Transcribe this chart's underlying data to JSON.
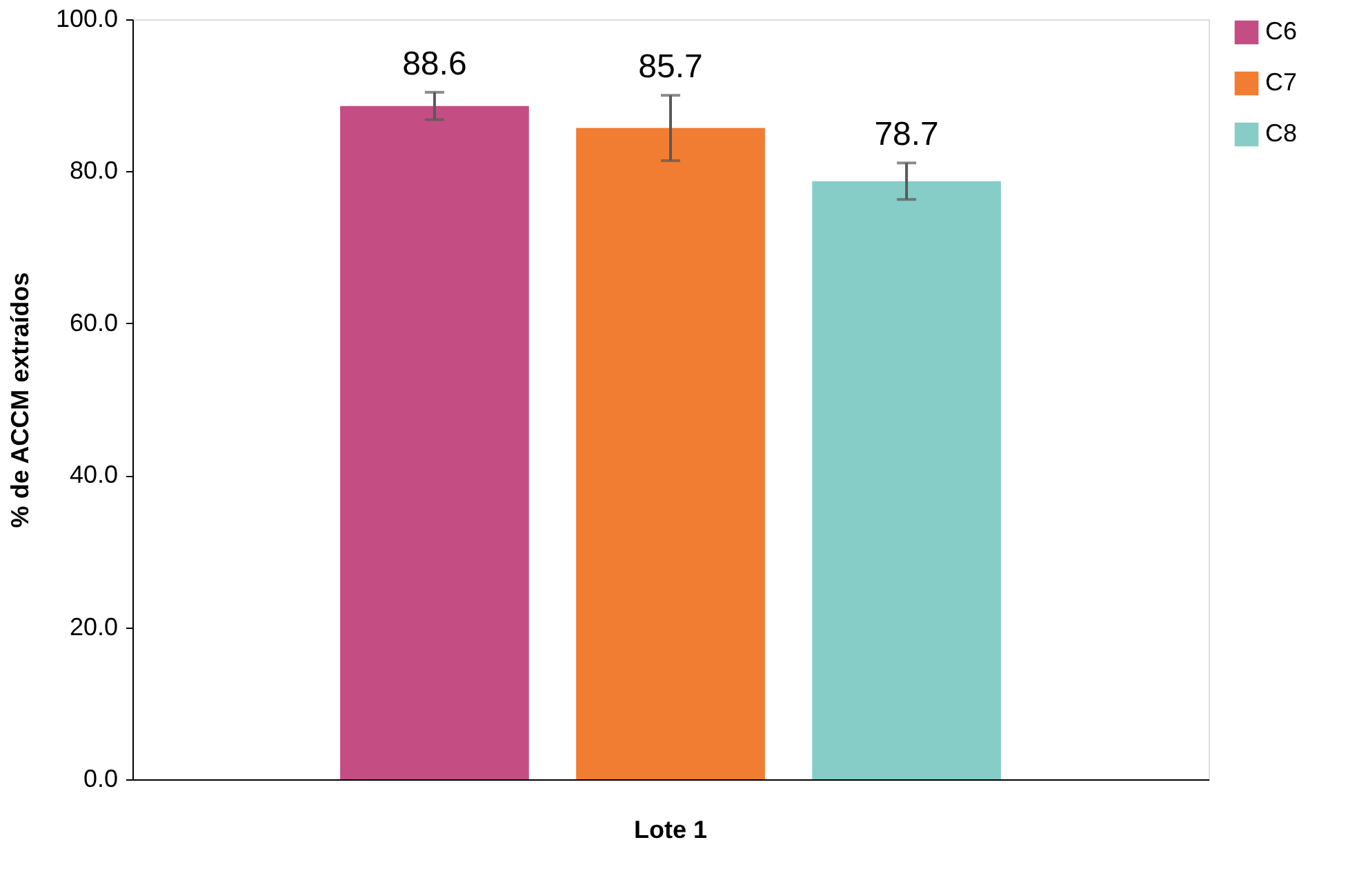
{
  "chart_data": {
    "type": "bar",
    "ylabel": "% de ACCM extraídos",
    "categories": [
      "Lote 1"
    ],
    "series": [
      {
        "name": "C6",
        "color": "#c44e83",
        "values": [
          88.6
        ],
        "errors": [
          1.8
        ]
      },
      {
        "name": "C7",
        "color": "#f07d32",
        "values": [
          85.7
        ],
        "errors": [
          4.3
        ]
      },
      {
        "name": "C8",
        "color": "#86cdc8",
        "values": [
          78.7
        ],
        "errors": [
          2.4
        ]
      }
    ],
    "ylim": [
      0,
      100
    ],
    "yticks": [
      {
        "value": 0,
        "label": "0.0"
      },
      {
        "value": 20,
        "label": "20.0"
      },
      {
        "value": 40,
        "label": "40.0"
      },
      {
        "value": 60,
        "label": "60.0"
      },
      {
        "value": 80,
        "label": "80.0"
      },
      {
        "value": 100,
        "label": "100.0"
      }
    ],
    "data_labels": true,
    "grid": false,
    "legend": "right"
  }
}
